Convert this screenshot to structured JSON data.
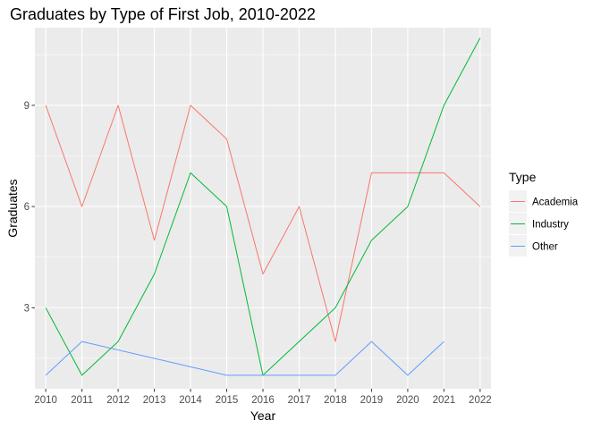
{
  "chart_data": {
    "type": "line",
    "title": "Graduates by Type of First Job, 2010-2022",
    "xlabel": "Year",
    "ylabel": "Graduates",
    "x": [
      2010,
      2011,
      2012,
      2013,
      2014,
      2015,
      2016,
      2017,
      2018,
      2019,
      2020,
      2021,
      2022
    ],
    "xlim": [
      2009.7,
      2022.3
    ],
    "ylim": [
      0.6,
      11.3
    ],
    "y_ticks": [
      3,
      6,
      9
    ],
    "grid": true,
    "legend": {
      "title": "Type",
      "placement": "right"
    },
    "series": [
      {
        "name": "Academia",
        "color": "#F8766D",
        "x": [
          2010,
          2011,
          2012,
          2013,
          2014,
          2015,
          2016,
          2017,
          2018,
          2019,
          2020,
          2021,
          2022
        ],
        "values": [
          9,
          6,
          9,
          5,
          9,
          8,
          4,
          6,
          2,
          7,
          7,
          7,
          6
        ]
      },
      {
        "name": "Industry",
        "color": "#00BA38",
        "x": [
          2010,
          2011,
          2012,
          2013,
          2014,
          2015,
          2016,
          2017,
          2018,
          2019,
          2020,
          2021,
          2022
        ],
        "values": [
          3,
          1,
          2,
          4,
          7,
          6,
          1,
          2,
          3,
          5,
          6,
          9,
          11
        ]
      },
      {
        "name": "Other",
        "color": "#619CFF",
        "x": [
          2010,
          2011,
          2015,
          2016,
          2017,
          2018,
          2019,
          2020,
          2021
        ],
        "values": [
          1,
          2,
          1,
          1,
          1,
          1,
          2,
          1,
          2
        ]
      }
    ]
  }
}
